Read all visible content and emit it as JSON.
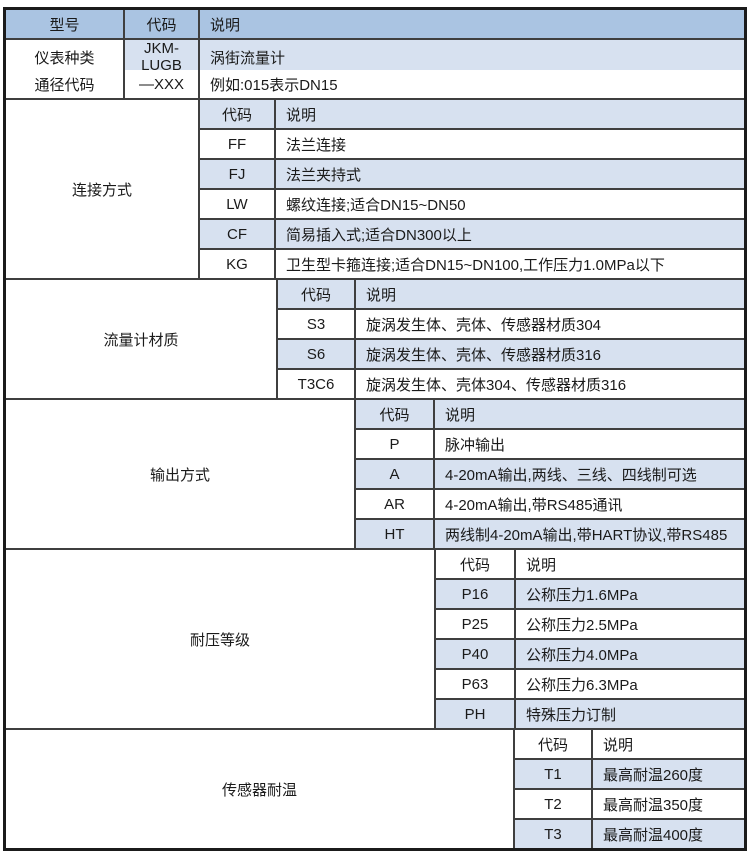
{
  "colors": {
    "header_bg": "#aac4e2",
    "stripe_bg": "#d7e1f0",
    "inner_border": "#3f3f3f",
    "outer_border": "#1b1b1b",
    "text": "#1a1a1a"
  },
  "table": {
    "header": {
      "model": "型号",
      "code": "代码",
      "desc": "说明"
    },
    "top_rows": [
      {
        "label": "仪表种类",
        "code": "JKM-LUGB",
        "desc": "涡街流量计"
      },
      {
        "label": "通径代码",
        "code": "—XXX",
        "desc": "例如:015表示DN15"
      }
    ],
    "sections": [
      {
        "label": "连接方式",
        "code_header": "代码",
        "desc_header": "说明",
        "rows": [
          {
            "code": "FF",
            "desc": "法兰连接"
          },
          {
            "code": "FJ",
            "desc": "法兰夹持式"
          },
          {
            "code": "LW",
            "desc": "螺纹连接;适合DN15~DN50"
          },
          {
            "code": "CF",
            "desc": "简易插入式;适合DN300以上"
          },
          {
            "code": "KG",
            "desc": "卫生型卡箍连接;适合DN15~DN100,工作压力1.0MPa以下"
          }
        ]
      },
      {
        "label": "流量计材质",
        "code_header": "代码",
        "desc_header": "说明",
        "rows": [
          {
            "code": "S3",
            "desc": "旋涡发生体、壳体、传感器材质304"
          },
          {
            "code": "S6",
            "desc": "旋涡发生体、壳体、传感器材质316"
          },
          {
            "code": "T3C6",
            "desc": "旋涡发生体、壳体304、传感器材质316"
          }
        ]
      },
      {
        "label": "输出方式",
        "code_header": "代码",
        "desc_header": "说明",
        "rows": [
          {
            "code": "P",
            "desc": "脉冲输出"
          },
          {
            "code": "A",
            "desc": "4-20mA输出,两线、三线、四线制可选"
          },
          {
            "code": "AR",
            "desc": "4-20mA输出,带RS485通讯"
          },
          {
            "code": "HT",
            "desc": "两线制4-20mA输出,带HART协议,带RS485"
          }
        ]
      },
      {
        "label": "耐压等级",
        "code_header": "代码",
        "desc_header": "说明",
        "rows": [
          {
            "code": "P16",
            "desc": "公称压力1.6MPa"
          },
          {
            "code": "P25",
            "desc": "公称压力2.5MPa"
          },
          {
            "code": "P40",
            "desc": "公称压力4.0MPa"
          },
          {
            "code": "P63",
            "desc": "公称压力6.3MPa"
          },
          {
            "code": "PH",
            "desc": "特殊压力订制"
          }
        ]
      },
      {
        "label": "传感器耐温",
        "code_header": "代码",
        "desc_header": "说明",
        "rows": [
          {
            "code": "T1",
            "desc": "最高耐温260度"
          },
          {
            "code": "T2",
            "desc": "最高耐温350度"
          },
          {
            "code": "T3",
            "desc": "最高耐温400度"
          }
        ]
      }
    ]
  }
}
